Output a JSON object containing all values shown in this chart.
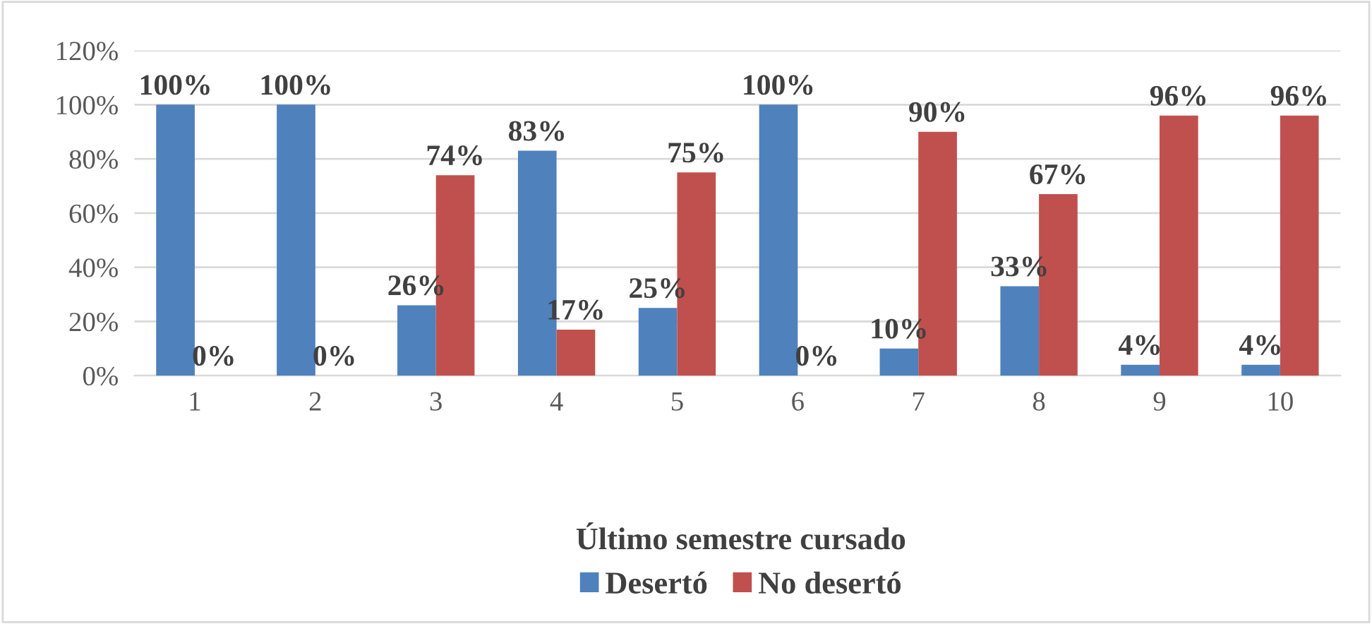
{
  "chart_data": {
    "type": "bar",
    "categories": [
      "1",
      "2",
      "3",
      "4",
      "5",
      "6",
      "7",
      "8",
      "9",
      "10"
    ],
    "series": [
      {
        "name": "Desertó",
        "color": "#4f81bd",
        "values": [
          100,
          100,
          26,
          83,
          25,
          100,
          10,
          33,
          4,
          4
        ],
        "value_labels": [
          "100%",
          "100%",
          "26%",
          "83%",
          "25%",
          "100%",
          "10%",
          "33%",
          "4%",
          "4%"
        ]
      },
      {
        "name": "No desertó",
        "color": "#c0504d",
        "values": [
          0,
          0,
          74,
          17,
          75,
          0,
          90,
          67,
          96,
          96
        ],
        "value_labels": [
          "0%",
          "0%",
          "74%",
          "17%",
          "75%",
          "0%",
          "90%",
          "67%",
          "96%",
          "96%"
        ]
      }
    ],
    "ylim": [
      0,
      120
    ],
    "yticks": [
      {
        "value": 0,
        "label": "0%"
      },
      {
        "value": 20,
        "label": "20%"
      },
      {
        "value": 40,
        "label": "40%"
      },
      {
        "value": 60,
        "label": "60%"
      },
      {
        "value": 80,
        "label": "80%"
      },
      {
        "value": 100,
        "label": "100%"
      },
      {
        "value": 120,
        "label": "120%"
      }
    ],
    "grid": "y",
    "legend": "bottom",
    "legend_title": "Último semestre cursado"
  }
}
